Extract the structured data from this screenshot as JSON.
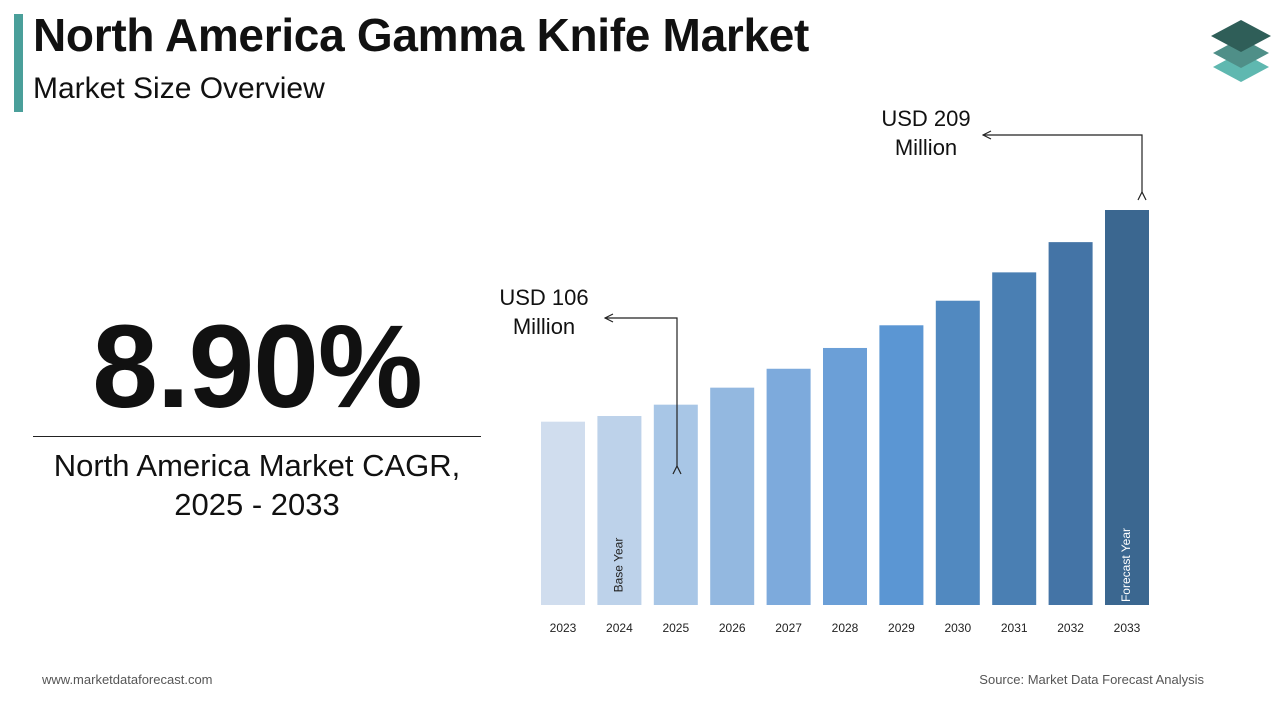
{
  "header": {
    "title": "North America Gamma Knife Market",
    "subtitle": "Market Size Overview"
  },
  "cagr": {
    "value": "8.90%",
    "label_line1": "North America Market CAGR,",
    "label_line2": "2025 - 2033"
  },
  "annotations": {
    "base_value_line1": "USD 106",
    "base_value_line2": "Million",
    "forecast_value_line1": "USD 209",
    "forecast_value_line2": "Million"
  },
  "footer": {
    "website": "www.marketdataforecast.com",
    "source": "Source: Market Data Forecast Analysis"
  },
  "colors": {
    "accent": "#4a9f9a",
    "logo_dark": "#2f5e58",
    "logo_mid": "#4f8f88",
    "logo_light": "#5fb8b0",
    "bars": [
      "#d0ddee",
      "#bdd2ea",
      "#a8c6e6",
      "#93b8e0",
      "#7daadc",
      "#6b9fd7",
      "#5b96d3",
      "#5189c0",
      "#4a7fb3",
      "#4474a6",
      "#3b6790"
    ]
  },
  "chart_data": {
    "type": "bar",
    "categories": [
      "2023",
      "2024",
      "2025",
      "2026",
      "2027",
      "2028",
      "2029",
      "2030",
      "2031",
      "2032",
      "2033"
    ],
    "values": [
      97,
      100,
      106,
      115,
      125,
      136,
      148,
      161,
      176,
      192,
      209
    ],
    "bar_labels": {
      "2024": "Base Year",
      "2033": "Forecast Year"
    },
    "title": "",
    "xlabel": "",
    "ylabel": "",
    "ylim": [
      0,
      209
    ],
    "unit": "USD Million",
    "grid": false,
    "legend": "none"
  }
}
